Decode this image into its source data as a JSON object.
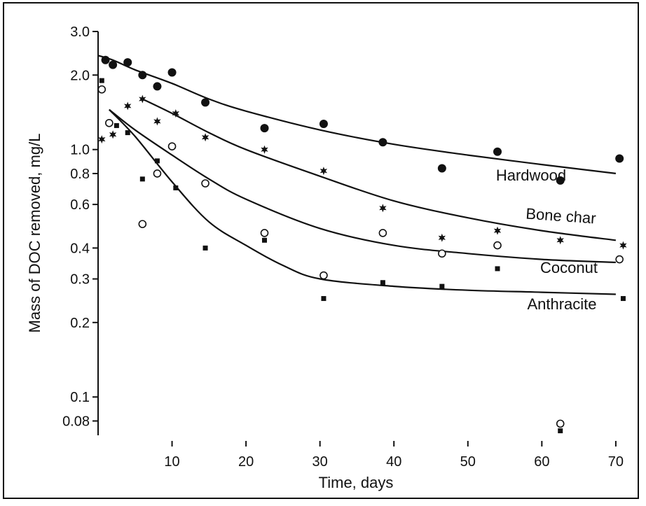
{
  "chart_data": {
    "type": "scatter",
    "title": "",
    "xlabel": "Time, days",
    "ylabel": "Mass of DOC removed, mg/L",
    "xlim": [
      0,
      72
    ],
    "ylim": [
      0.07,
      3.0
    ],
    "yscale": "log",
    "grid": false,
    "legend": "inline labels",
    "x_ticks": [
      10,
      20,
      30,
      40,
      50,
      60,
      70
    ],
    "x_tick_labels": [
      "10",
      "20",
      "30",
      "40",
      "50",
      "60",
      "70"
    ],
    "y_ticks": [
      0.08,
      0.1,
      0.2,
      0.3,
      0.4,
      0.6,
      0.8,
      1.0,
      2.0,
      3.0
    ],
    "y_tick_labels": [
      "0.08",
      "0.1",
      "0.2",
      "0.3",
      "0.4",
      "0.6",
      "0.8",
      "1.0",
      "2.0",
      "3.0"
    ],
    "series": [
      {
        "name": "Hardwood",
        "marker": "filled-circle",
        "points": [
          [
            1,
            2.3
          ],
          [
            2,
            2.2
          ],
          [
            4,
            2.25
          ],
          [
            6,
            2.0
          ],
          [
            8,
            1.8
          ],
          [
            10,
            2.05
          ],
          [
            14.5,
            1.55
          ],
          [
            22.5,
            1.22
          ],
          [
            30.5,
            1.27
          ],
          [
            38.5,
            1.07
          ],
          [
            46.5,
            0.84
          ],
          [
            54,
            0.98
          ],
          [
            62.5,
            0.75
          ],
          [
            70.5,
            0.92
          ]
        ],
        "curve": [
          [
            0,
            2.4
          ],
          [
            2,
            2.3
          ],
          [
            5,
            2.1
          ],
          [
            10,
            1.85
          ],
          [
            15,
            1.6
          ],
          [
            20,
            1.43
          ],
          [
            30,
            1.2
          ],
          [
            40,
            1.05
          ],
          [
            50,
            0.95
          ],
          [
            60,
            0.87
          ],
          [
            70,
            0.8
          ]
        ]
      },
      {
        "name": "Bone char",
        "marker": "star",
        "points": [
          [
            0.5,
            1.1
          ],
          [
            2,
            1.15
          ],
          [
            4,
            1.5
          ],
          [
            6,
            1.6
          ],
          [
            8,
            1.3
          ],
          [
            10.5,
            1.4
          ],
          [
            14.5,
            1.12
          ],
          [
            22.5,
            1.0
          ],
          [
            30.5,
            0.82
          ],
          [
            38.5,
            0.58
          ],
          [
            46.5,
            0.44
          ],
          [
            54,
            0.47
          ],
          [
            62.5,
            0.43
          ],
          [
            71,
            0.41
          ]
        ],
        "curve": [
          [
            6,
            1.6
          ],
          [
            10,
            1.4
          ],
          [
            15,
            1.17
          ],
          [
            20,
            1.0
          ],
          [
            30,
            0.78
          ],
          [
            40,
            0.62
          ],
          [
            50,
            0.53
          ],
          [
            60,
            0.47
          ],
          [
            70,
            0.43
          ]
        ]
      },
      {
        "name": "Coconut",
        "marker": "open-circle",
        "points": [
          [
            0.5,
            1.75
          ],
          [
            1.5,
            1.28
          ],
          [
            6,
            0.5
          ],
          [
            8,
            0.8
          ],
          [
            10,
            1.03
          ],
          [
            14.5,
            0.73
          ],
          [
            22.5,
            0.46
          ],
          [
            30.5,
            0.31
          ],
          [
            38.5,
            0.46
          ],
          [
            46.5,
            0.38
          ],
          [
            54,
            0.41
          ],
          [
            62.5,
            0.078
          ],
          [
            70.5,
            0.36
          ]
        ],
        "curve": [
          [
            1.5,
            1.45
          ],
          [
            5,
            1.2
          ],
          [
            10,
            0.95
          ],
          [
            15,
            0.76
          ],
          [
            20,
            0.63
          ],
          [
            30,
            0.48
          ],
          [
            40,
            0.41
          ],
          [
            50,
            0.38
          ],
          [
            60,
            0.36
          ],
          [
            70,
            0.35
          ]
        ]
      },
      {
        "name": "Anthracite",
        "marker": "filled-square",
        "points": [
          [
            0.5,
            1.9
          ],
          [
            2.5,
            1.25
          ],
          [
            4,
            1.17
          ],
          [
            6,
            0.76
          ],
          [
            8,
            0.9
          ],
          [
            10.5,
            0.7
          ],
          [
            14.5,
            0.4
          ],
          [
            22.5,
            0.43
          ],
          [
            30.5,
            0.25
          ],
          [
            38.5,
            0.29
          ],
          [
            46.5,
            0.28
          ],
          [
            54,
            0.33
          ],
          [
            62.5,
            0.073
          ],
          [
            71,
            0.25
          ]
        ],
        "curve": [
          [
            1.5,
            1.45
          ],
          [
            5,
            1.13
          ],
          [
            10,
            0.74
          ],
          [
            15,
            0.51
          ],
          [
            20,
            0.41
          ],
          [
            25,
            0.34
          ],
          [
            30,
            0.3
          ],
          [
            40,
            0.28
          ],
          [
            50,
            0.27
          ],
          [
            60,
            0.265
          ],
          [
            70,
            0.26
          ]
        ]
      }
    ]
  }
}
